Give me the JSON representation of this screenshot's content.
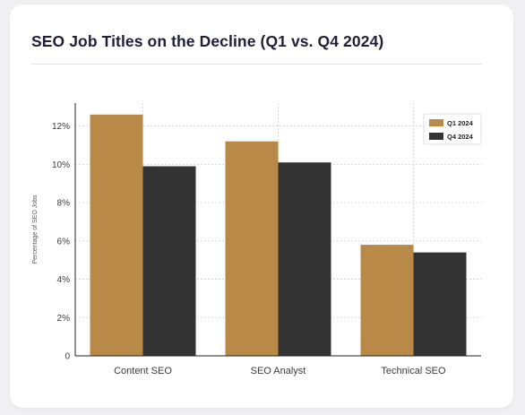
{
  "card": {
    "title": "SEO Job Titles on the Decline (Q1 vs. Q4 2024)"
  },
  "chart_data": {
    "type": "bar",
    "title": "SEO Job Titles on the Decline (Q1 vs. Q4 2024)",
    "xlabel": "",
    "ylabel": "Percentage of SEO Jobs",
    "categories": [
      "Content SEO",
      "SEO Analyst",
      "Technical SEO"
    ],
    "series": [
      {
        "name": "Q1 2024",
        "values": [
          12.6,
          11.2,
          5.8
        ],
        "color": "#b88947"
      },
      {
        "name": "Q4 2024",
        "values": [
          9.9,
          10.1,
          5.4
        ],
        "color": "#333333"
      }
    ],
    "ylim": [
      0,
      13.2
    ],
    "yticks": [
      0,
      2,
      4,
      6,
      8,
      10,
      12
    ],
    "ytick_labels": [
      "0",
      "2%",
      "4%",
      "6%",
      "8%",
      "10%",
      "12%"
    ],
    "grid": true,
    "legend_position": "top-right"
  }
}
